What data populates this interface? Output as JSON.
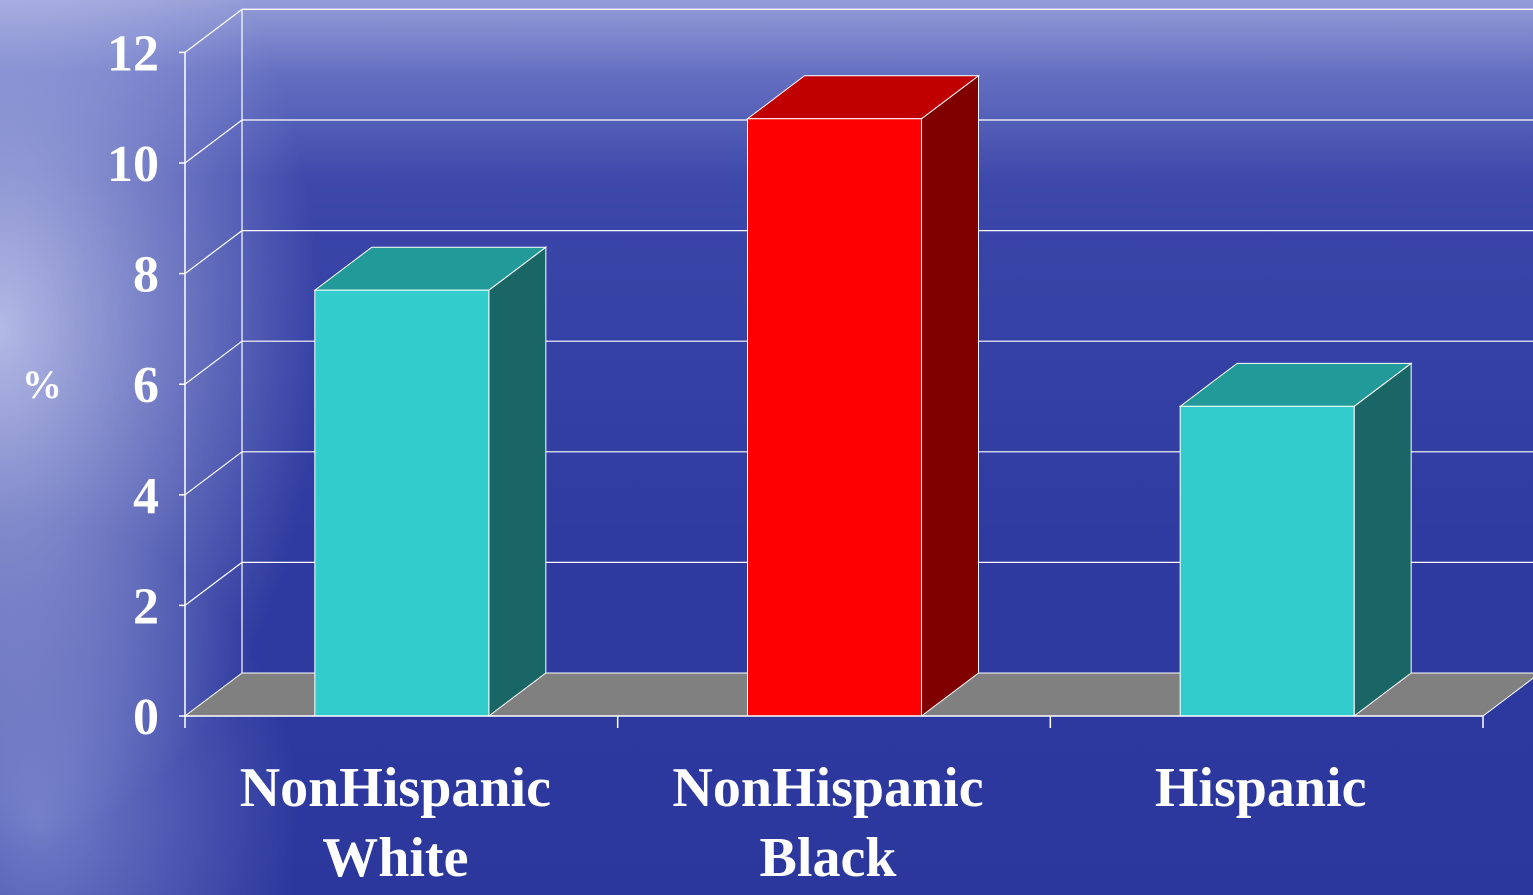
{
  "chart_data": {
    "type": "bar",
    "categories": [
      [
        "NonHispanic",
        "White"
      ],
      [
        "NonHispanic",
        "Black"
      ],
      [
        "Hispanic"
      ]
    ],
    "values": [
      7.7,
      10.8,
      5.6
    ],
    "bar_colors": [
      {
        "front": "#33cccc",
        "top": "#239a9a",
        "side": "#1a6666"
      },
      {
        "front": "#ff0000",
        "top": "#c00000",
        "side": "#800000"
      },
      {
        "front": "#33cccc",
        "top": "#239a9a",
        "side": "#1a6666"
      }
    ],
    "floor_color": "#808080",
    "ylabel": "%",
    "ylim": [
      0,
      12
    ],
    "yticks": [
      "0",
      "2",
      "4",
      "6",
      "8",
      "10",
      "12"
    ],
    "grid": true,
    "style": "3d"
  }
}
